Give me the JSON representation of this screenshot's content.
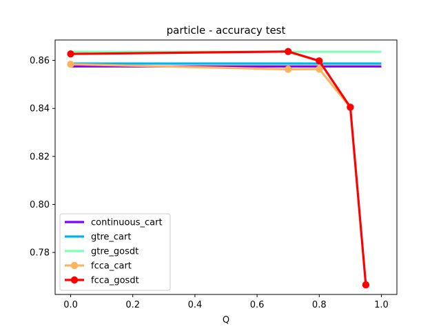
{
  "chart_data": {
    "type": "line",
    "title": "particle - accuracy test",
    "xlabel": "Q",
    "ylabel": "",
    "xlim": [
      -0.05,
      1.05
    ],
    "ylim": [
      0.7625,
      0.8685
    ],
    "xticks": [
      {
        "value": 0.0,
        "label": "0.0"
      },
      {
        "value": 0.2,
        "label": "0.2"
      },
      {
        "value": 0.4,
        "label": "0.4"
      },
      {
        "value": 0.6,
        "label": "0.6"
      },
      {
        "value": 0.8,
        "label": "0.8"
      },
      {
        "value": 1.0,
        "label": "1.0"
      }
    ],
    "yticks": [
      {
        "value": 0.78,
        "label": "0.78"
      },
      {
        "value": 0.8,
        "label": "0.80"
      },
      {
        "value": 0.82,
        "label": "0.82"
      },
      {
        "value": 0.84,
        "label": "0.84"
      },
      {
        "value": 0.86,
        "label": "0.86"
      }
    ],
    "grid": false,
    "legend_position": "lower-left",
    "series": [
      {
        "name": "continuous_cart",
        "color": "#8000ff",
        "markers": false,
        "x": [
          0.0,
          1.0
        ],
        "y": [
          0.8575,
          0.8575
        ]
      },
      {
        "name": "gtre_cart",
        "color": "#00b5eb",
        "markers": false,
        "x": [
          0.0,
          1.0
        ],
        "y": [
          0.8587,
          0.8587
        ]
      },
      {
        "name": "gtre_gosdt",
        "color": "#80ffb4",
        "markers": false,
        "x": [
          0.0,
          1.0
        ],
        "y": [
          0.8636,
          0.8636
        ]
      },
      {
        "name": "fcca_cart",
        "color": "#ffb360",
        "markers": true,
        "x": [
          0.0,
          0.7,
          0.8,
          0.9
        ],
        "y": [
          0.8584,
          0.8563,
          0.8564,
          0.8405
        ]
      },
      {
        "name": "fcca_gosdt",
        "color": "#ff0000",
        "markers": true,
        "x": [
          0.0,
          0.7,
          0.8,
          0.9,
          0.95
        ],
        "y": [
          0.8627,
          0.8637,
          0.8598,
          0.8405,
          0.7665
        ]
      }
    ]
  }
}
